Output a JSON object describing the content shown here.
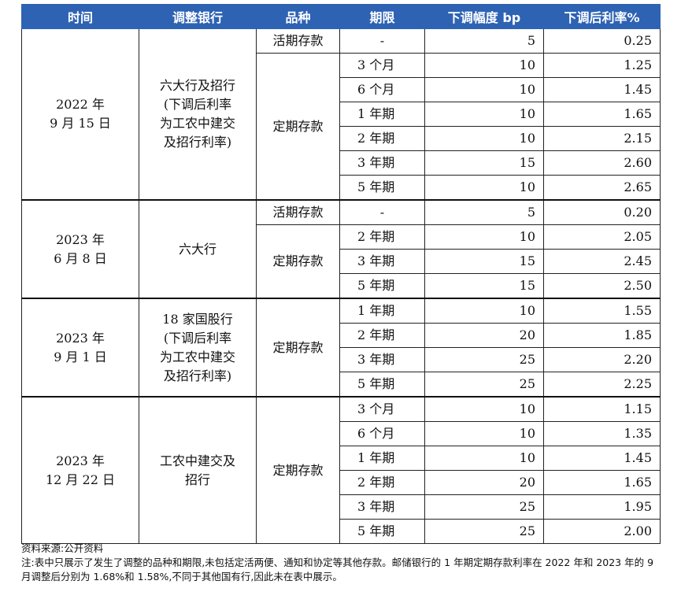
{
  "headers": [
    "时间",
    "调整银行",
    "品种",
    "期限",
    "下调幅度 bp",
    "下调后利率%"
  ],
  "groups": [
    {
      "date": [
        "2022 年",
        "9 月 15 日"
      ],
      "bank": [
        "六大行及招行",
        "(下调后利率",
        "为工农中建交",
        "及招行利率)"
      ],
      "kinds": [
        {
          "kind": "活期存款",
          "rows": [
            [
              "-",
              "5",
              "0.25"
            ]
          ]
        },
        {
          "kind": "定期存款",
          "rows": [
            [
              "3 个月",
              "10",
              "1.25"
            ],
            [
              "6 个月",
              "10",
              "1.45"
            ],
            [
              "1 年期",
              "10",
              "1.65"
            ],
            [
              "2 年期",
              "10",
              "2.15"
            ],
            [
              "3 年期",
              "15",
              "2.60"
            ],
            [
              "5 年期",
              "10",
              "2.65"
            ]
          ]
        }
      ]
    },
    {
      "date": [
        "2023 年",
        "6 月 8 日"
      ],
      "bank": [
        "六大行"
      ],
      "kinds": [
        {
          "kind": "活期存款",
          "rows": [
            [
              "-",
              "5",
              "0.20"
            ]
          ]
        },
        {
          "kind": "定期存款",
          "rows": [
            [
              "2 年期",
              "10",
              "2.05"
            ],
            [
              "3 年期",
              "15",
              "2.45"
            ],
            [
              "5 年期",
              "15",
              "2.50"
            ]
          ]
        }
      ]
    },
    {
      "date": [
        "2023 年",
        "9 月 1 日"
      ],
      "bank": [
        "18 家国股行",
        "(下调后利率",
        "为工农中建交",
        "及招行利率)"
      ],
      "kinds": [
        {
          "kind": "定期存款",
          "rows": [
            [
              "1 年期",
              "10",
              "1.55"
            ],
            [
              "2 年期",
              "20",
              "1.85"
            ],
            [
              "3 年期",
              "25",
              "2.20"
            ],
            [
              "5 年期",
              "25",
              "2.25"
            ]
          ]
        }
      ]
    },
    {
      "date": [
        "2023 年",
        "12 月 22 日"
      ],
      "bank": [
        "工农中建交及",
        "招行"
      ],
      "kinds": [
        {
          "kind": "定期存款",
          "rows": [
            [
              "3 个月",
              "10",
              "1.15"
            ],
            [
              "6 个月",
              "10",
              "1.35"
            ],
            [
              "1 年期",
              "10",
              "1.45"
            ],
            [
              "2 年期",
              "20",
              "1.65"
            ],
            [
              "3 年期",
              "25",
              "1.95"
            ],
            [
              "5 年期",
              "25",
              "2.00"
            ]
          ]
        }
      ]
    }
  ],
  "notes": {
    "source": "资料来源:公开资料",
    "note": "注:表中只展示了发生了调整的品种和期限,未包括定活两便、通知和协定等其他存款。邮储银行的 1 年期定期存款利率在 2022 年和 2023 年的 9 月调整后分别为 1.68%和 1.58%,不同于其他国有行,因此未在表中展示。"
  }
}
